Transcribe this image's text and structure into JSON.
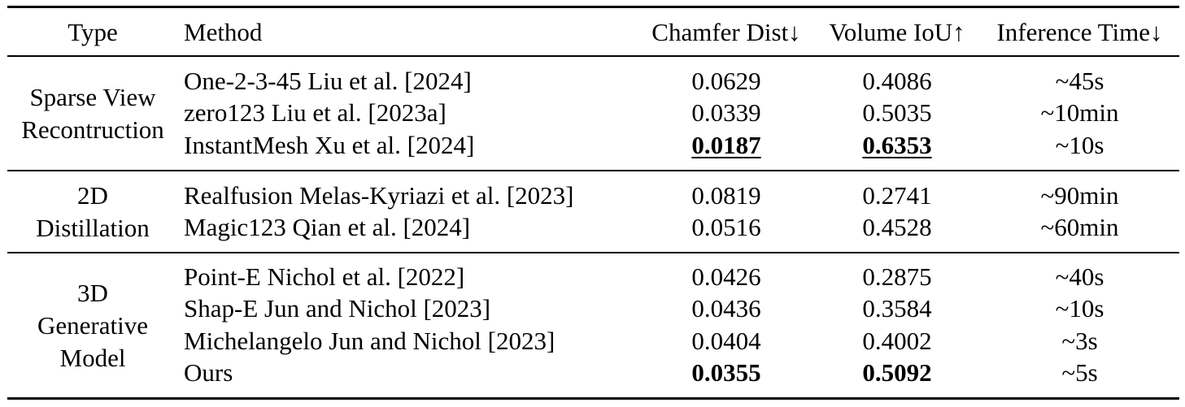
{
  "header": {
    "type": "Type",
    "method": "Method",
    "chamfer": "Chamfer Dist↓",
    "iou": "Volume IoU↑",
    "time": "Inference Time↓"
  },
  "groups": [
    {
      "type_lines": [
        "Sparse View",
        "Recontruction"
      ],
      "rows": [
        {
          "method": "One-2-3-45 Liu et al. [2024]",
          "chamfer": "0.0629",
          "iou": "0.4086",
          "time": "~45s"
        },
        {
          "method": "zero123 Liu et al. [2023a]",
          "chamfer": "0.0339",
          "iou": "0.5035",
          "time": "~10min"
        },
        {
          "method": "InstantMesh Xu et al. [2024]",
          "chamfer": "0.0187",
          "iou": "0.6353",
          "time": "~10s"
        }
      ]
    },
    {
      "type_lines": [
        "2D",
        "Distillation"
      ],
      "rows": [
        {
          "method": "Realfusion Melas-Kyriazi et al. [2023]",
          "chamfer": "0.0819",
          "iou": "0.2741",
          "time": "~90min"
        },
        {
          "method": "Magic123 Qian et al. [2024]",
          "chamfer": "0.0516",
          "iou": "0.4528",
          "time": "~60min"
        }
      ]
    },
    {
      "type_lines": [
        "3D",
        "Generative",
        "Model"
      ],
      "rows": [
        {
          "method": "Point-E Nichol et al. [2022]",
          "chamfer": "0.0426",
          "iou": "0.2875",
          "time": "~40s"
        },
        {
          "method": "Shap-E Jun and Nichol [2023]",
          "chamfer": "0.0436",
          "iou": "0.3584",
          "time": "~10s"
        },
        {
          "method": "Michelangelo Jun and Nichol [2023]",
          "chamfer": "0.0404",
          "iou": "0.4002",
          "time": "~3s"
        },
        {
          "method": "Ours",
          "chamfer": "0.0355",
          "iou": "0.5092",
          "time": "~5s"
        }
      ]
    }
  ]
}
